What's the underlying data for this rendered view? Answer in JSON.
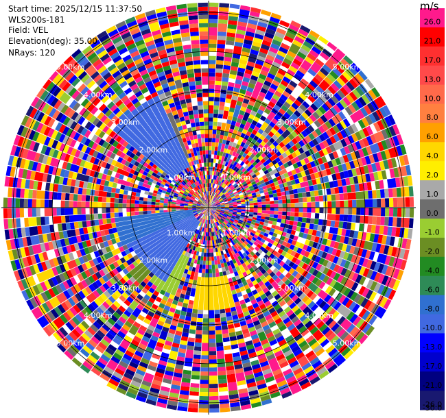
{
  "header": {
    "start_time": "Start time: 2025/12/15 11:37:50",
    "instrument": "WLS200s-181",
    "field": "Field: VEL",
    "elevation": "Elevation(deg): 35.00",
    "nrays": "NRays: 120"
  },
  "colorbar": {
    "unit": "m/s",
    "ticks": [
      "26.0",
      "21.0",
      "17.0",
      "13.0",
      "10.0",
      "8.0",
      "6.0",
      "4.0",
      "2.0",
      "1.0",
      "0.0",
      "-1.0",
      "-2.0",
      "-4.0",
      "-6.0",
      "-8.0",
      "-10.0",
      "-13.0",
      "-17.0",
      "-21.0",
      "-26.0",
      "-30.0"
    ],
    "colors": [
      "#ff1a8c",
      "#ff0000",
      "#ff3030",
      "#ff4a4a",
      "#ff6a4a",
      "#ff8040",
      "#ffa000",
      "#ffd700",
      "#ffee00",
      "#a9a9a9",
      "#6e6e6e",
      "#9acd32",
      "#6b8e23",
      "#228b22",
      "#2e8b57",
      "#3070d0",
      "#4169e1",
      "#0000ff",
      "#0000cd",
      "#000080",
      "#191970"
    ]
  },
  "chart_data": {
    "type": "heatmap",
    "title": "",
    "projection": "polar PPI",
    "field": "VEL",
    "unit": "m/s",
    "n_rays": 120,
    "elevation_deg": 35.0,
    "value_range": [
      -30.0,
      26.0
    ],
    "range_ring_labels": [
      "1.00km",
      "2.00km",
      "3.00km",
      "4.00km",
      "5.00km"
    ],
    "rings": [
      1,
      2,
      3,
      4,
      5
    ],
    "ring_label_angles_deg": [
      -45,
      45,
      135,
      225
    ],
    "max_range_km": 5.3,
    "coherent_sectors": [
      {
        "az_from": 210,
        "az_to": 245,
        "color": "#4169e1",
        "r_from": 0.4,
        "r_to": 2.2
      },
      {
        "az_from": 245,
        "az_to": 265,
        "color": "#3070d0",
        "r_from": 0.4,
        "r_to": 2.4
      },
      {
        "az_from": 222,
        "az_to": 232,
        "color": "#6b8e23",
        "r_from": 1.3,
        "r_to": 2.6
      },
      {
        "az_from": 200,
        "az_to": 220,
        "color": "#9acd32",
        "r_from": 1.4,
        "r_to": 2.4
      },
      {
        "az_from": 165,
        "az_to": 190,
        "color": "#ffd700",
        "r_from": 1.8,
        "r_to": 2.6
      },
      {
        "az_from": 310,
        "az_to": 335,
        "color": "#4169e1",
        "r_from": 1.2,
        "r_to": 3.2
      },
      {
        "az_from": 325,
        "az_to": 340,
        "color": "#6e6e6e",
        "r_from": 1.4,
        "r_to": 2.6
      }
    ]
  }
}
